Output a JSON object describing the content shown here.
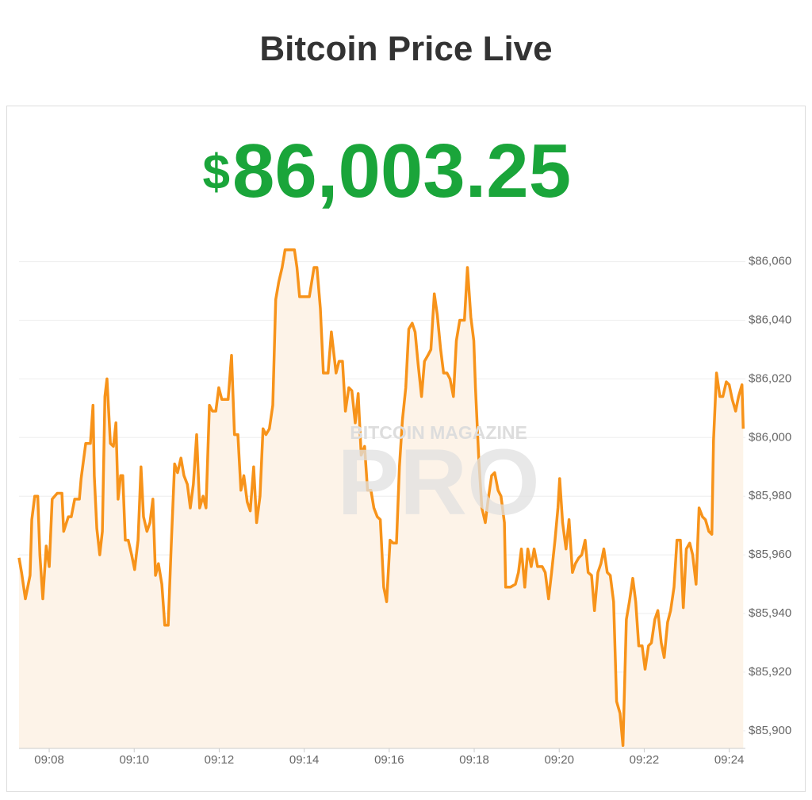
{
  "header": {
    "title": "Bitcoin Price Live"
  },
  "price": {
    "currency": "$",
    "amount": "86,003.25"
  },
  "watermark": {
    "brand": "BITCOIN MAGAZINE",
    "product": "PRO"
  },
  "chart_data": {
    "type": "area",
    "color": "#f7931a",
    "fill": "#fdf3e8",
    "grid": true,
    "x": [
      547.29,
      547.35,
      547.44,
      547.55,
      547.59,
      547.66,
      547.73,
      547.78,
      547.85,
      547.93,
      548.0,
      548.07,
      548.19,
      548.3,
      548.34,
      548.45,
      548.52,
      548.6,
      548.71,
      548.75,
      548.86,
      548.97,
      549.03,
      549.06,
      549.12,
      549.19,
      549.25,
      549.31,
      549.36,
      549.44,
      549.51,
      549.57,
      549.62,
      549.68,
      549.73,
      549.79,
      549.86,
      549.94,
      550.01,
      550.09,
      550.16,
      550.22,
      550.3,
      550.37,
      550.44,
      550.5,
      550.57,
      550.65,
      550.72,
      550.8,
      550.87,
      550.95,
      551.02,
      551.1,
      551.17,
      551.25,
      551.32,
      551.39,
      551.47,
      551.54,
      551.62,
      551.69,
      551.77,
      551.84,
      551.92,
      551.99,
      552.06,
      552.14,
      552.21,
      552.29,
      552.36,
      552.44,
      552.51,
      552.58,
      552.66,
      552.73,
      552.81,
      552.88,
      552.96,
      553.03,
      553.1,
      553.18,
      553.26,
      553.33,
      553.4,
      553.48,
      553.55,
      553.66,
      553.77,
      553.83,
      553.89,
      554.0,
      554.12,
      554.23,
      554.3,
      554.38,
      554.45,
      554.56,
      554.64,
      554.75,
      554.82,
      554.9,
      554.97,
      555.05,
      555.12,
      555.2,
      555.27,
      555.34,
      555.42,
      555.49,
      555.57,
      555.64,
      555.72,
      555.79,
      555.87,
      555.94,
      556.02,
      556.09,
      556.17,
      556.24,
      556.31,
      556.39,
      556.46,
      556.54,
      556.61,
      556.68,
      556.76,
      556.83,
      556.91,
      556.98,
      557.06,
      557.13,
      557.21,
      557.28,
      557.36,
      557.43,
      557.51,
      557.58,
      557.66,
      557.77,
      557.84,
      557.92,
      557.99,
      558.03,
      558.11,
      558.18,
      558.26,
      558.33,
      558.41,
      558.48,
      558.56,
      558.63,
      558.71,
      558.74,
      558.85,
      558.97,
      559.04,
      559.11,
      559.19,
      559.26,
      559.34,
      559.41,
      559.49,
      559.6,
      559.67,
      559.75,
      559.82,
      559.9,
      559.97,
      560.01,
      560.08,
      560.16,
      560.23,
      560.31,
      560.38,
      560.46,
      560.53,
      560.61,
      560.68,
      560.76,
      560.83,
      560.91,
      560.98,
      561.05,
      561.13,
      561.2,
      561.28,
      561.35,
      561.43,
      561.5,
      561.58,
      561.65,
      561.73,
      561.8,
      561.87,
      561.95,
      562.02,
      562.1,
      562.17,
      562.25,
      562.32,
      562.4,
      562.47,
      562.55,
      562.62,
      562.7,
      562.77,
      562.85,
      562.92,
      562.99,
      563.07,
      563.14,
      563.22,
      563.29,
      563.37,
      563.44,
      563.52,
      563.59,
      563.63,
      563.7,
      563.78,
      563.85,
      563.93,
      564.0,
      564.07,
      564.15,
      564.22,
      564.3,
      564.33
    ],
    "values": [
      85959,
      85954,
      85945,
      85953,
      85972,
      85980,
      85980,
      85960,
      85945,
      85963,
      85956,
      85979,
      85981,
      85981,
      85968,
      85973,
      85973,
      85979,
      85979,
      85986,
      85998,
      85998,
      86011,
      85987,
      85969,
      85960,
      85968,
      86014,
      86020,
      85998,
      85997,
      86005,
      85979,
      85987,
      85987,
      85965,
      85965,
      85960,
      85955,
      85965,
      85990,
      85973,
      85968,
      85971,
      85979,
      85953,
      85957,
      85950,
      85936,
      85936,
      85963,
      85991,
      85988,
      85993,
      85987,
      85984,
      85976,
      85984,
      86001,
      85976,
      85980,
      85976,
      86011,
      86009,
      86009,
      86017,
      86013,
      86013,
      86013,
      86028,
      86001,
      86001,
      85982,
      85987,
      85978,
      85975,
      85990,
      85971,
      85980,
      86003,
      86001,
      86003,
      86011,
      86047,
      86053,
      86058,
      86064,
      86064,
      86064,
      86058,
      86048,
      86048,
      86048,
      86058,
      86058,
      86044,
      86022,
      86022,
      86036,
      86022,
      86026,
      86026,
      86009,
      86017,
      86016,
      86005,
      86015,
      85994,
      85997,
      85982,
      85982,
      85976,
      85973,
      85972,
      85949,
      85944,
      85965,
      85964,
      85964,
      85990,
      86006,
      86017,
      86037,
      86039,
      86036,
      86025,
      86014,
      86026,
      86028,
      86030,
      86049,
      86042,
      86030,
      86022,
      86022,
      86020,
      86014,
      86033,
      86040,
      86040,
      86058,
      86041,
      86033,
      86017,
      85992,
      85976,
      85971,
      85979,
      85987,
      85988,
      85982,
      85980,
      85971,
      85949,
      85949,
      85950,
      85954,
      85962,
      85949,
      85962,
      85956,
      85962,
      85956,
      85956,
      85954,
      85945,
      85954,
      85965,
      85976,
      85986,
      85971,
      85962,
      85972,
      85954,
      85957,
      85959,
      85960,
      85965,
      85954,
      85953,
      85941,
      85954,
      85957,
      85962,
      85954,
      85953,
      85944,
      85910,
      85906,
      85895,
      85938,
      85944,
      85952,
      85944,
      85929,
      85929,
      85921,
      85929,
      85930,
      85938,
      85941,
      85930,
      85925,
      85937,
      85941,
      85949,
      85965,
      85965,
      85942,
      85962,
      85964,
      85960,
      85950,
      85976,
      85973,
      85972,
      85968,
      85967,
      85999,
      86022,
      86014,
      86014,
      86019,
      86018,
      86013,
      86009,
      86014,
      86018,
      86003
    ],
    "xlim": [
      547.29,
      564.38
    ],
    "xticks": [
      {
        "value": 548,
        "label": "09:08"
      },
      {
        "value": 550,
        "label": "09:10"
      },
      {
        "value": 552,
        "label": "09:12"
      },
      {
        "value": 554,
        "label": "09:14"
      },
      {
        "value": 556,
        "label": "09:16"
      },
      {
        "value": 558,
        "label": "09:18"
      },
      {
        "value": 560,
        "label": "09:20"
      },
      {
        "value": 562,
        "label": "09:22"
      },
      {
        "value": 564,
        "label": "09:24"
      }
    ],
    "ylim": [
      85894,
      86068
    ],
    "yticks": [
      {
        "value": 85900,
        "label": "$85,900"
      },
      {
        "value": 85920,
        "label": "$85,920"
      },
      {
        "value": 85940,
        "label": "$85,940"
      },
      {
        "value": 85960,
        "label": "$85,960"
      },
      {
        "value": 85980,
        "label": "$85,980"
      },
      {
        "value": 86000,
        "label": "$86,000"
      },
      {
        "value": 86020,
        "label": "$86,020"
      },
      {
        "value": 86040,
        "label": "$86,040"
      },
      {
        "value": 86060,
        "label": "$86,060"
      }
    ]
  }
}
